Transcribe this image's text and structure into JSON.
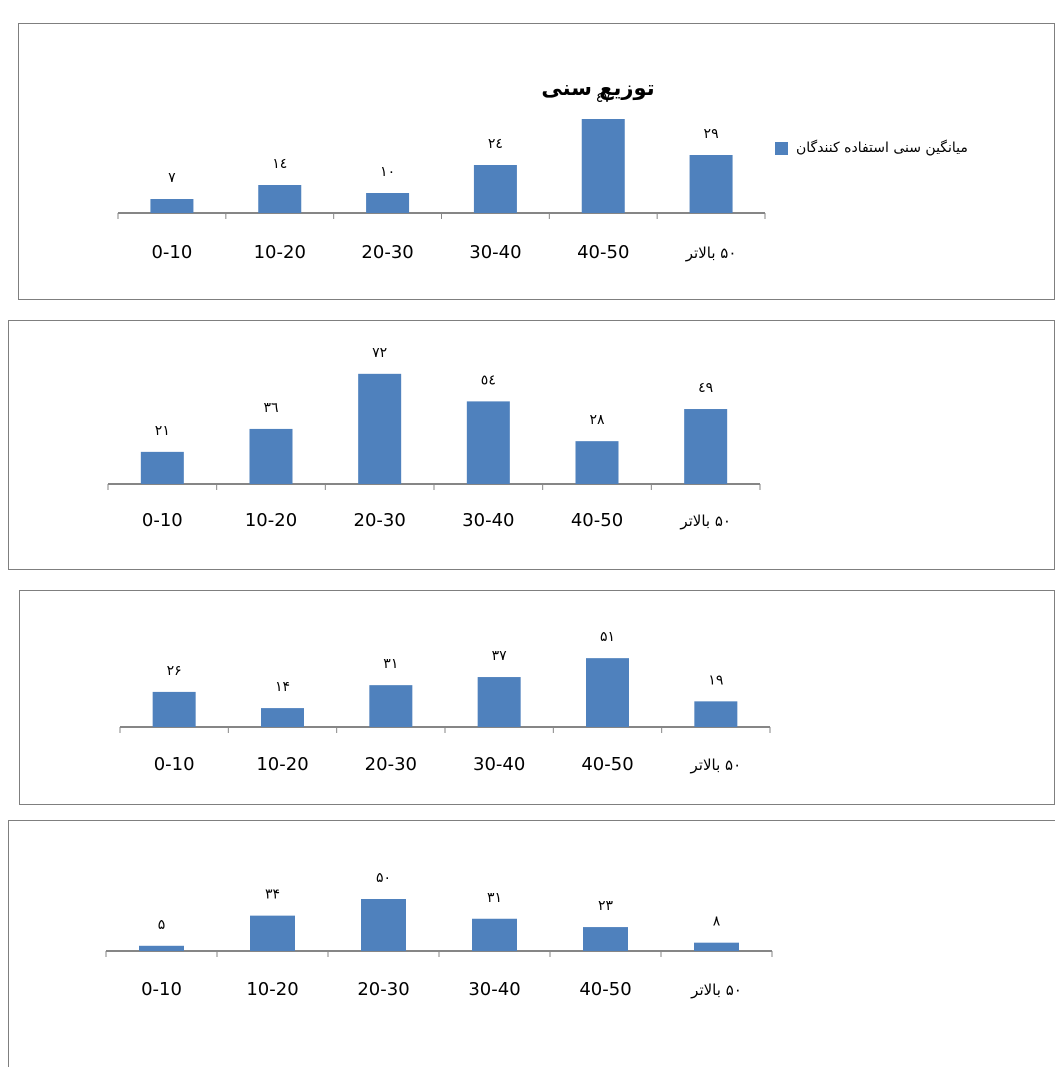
{
  "colors": {
    "bar": "#4f81bd",
    "axis": "#868686",
    "frame": "#7f7f7f",
    "text": "#000000"
  },
  "legend": {
    "label": "میانگین سنی استفاده کنندگان"
  },
  "chart_data": [
    {
      "type": "bar",
      "title": "توزیع سنی",
      "categories": [
        "0-10",
        "10-20",
        "20-30",
        "30-40",
        "40-50",
        "۵۰ بالاتر"
      ],
      "values": [
        7,
        14,
        10,
        24,
        47,
        29
      ],
      "data_labels": [
        "۷",
        "۱٤",
        "۱۰",
        "٢٤",
        "٤٧",
        "٢٩"
      ],
      "series": [
        {
          "name": "میانگین سنی استفاده کنندگان",
          "values": [
            7,
            14,
            10,
            24,
            47,
            29
          ]
        }
      ],
      "legend": "right",
      "grid": false
    },
    {
      "type": "bar",
      "categories": [
        "0-10",
        "10-20",
        "20-30",
        "30-40",
        "40-50",
        "۵۰ بالاتر"
      ],
      "values": [
        21,
        36,
        72,
        54,
        28,
        49
      ],
      "data_labels": [
        "٢١",
        "٣٦",
        "٧٢",
        "٥٤",
        "٢٨",
        "٤٩"
      ],
      "grid": false
    },
    {
      "type": "bar",
      "categories": [
        "0-10",
        "10-20",
        "20-30",
        "30-40",
        "40-50",
        "۵۰ بالاتر"
      ],
      "values": [
        26,
        14,
        31,
        37,
        51,
        19
      ],
      "data_labels": [
        "۲۶",
        "۱۴",
        "۳۱",
        "۳۷",
        "۵۱",
        "۱۹"
      ],
      "grid": false
    },
    {
      "type": "bar",
      "categories": [
        "0-10",
        "10-20",
        "20-30",
        "30-40",
        "40-50",
        "۵۰ بالاتر"
      ],
      "values": [
        5,
        34,
        50,
        31,
        23,
        8
      ],
      "data_labels": [
        "۵",
        "۳۴",
        "۵۰",
        "۳۱",
        "۲۳",
        "۸"
      ],
      "grid": false
    }
  ]
}
